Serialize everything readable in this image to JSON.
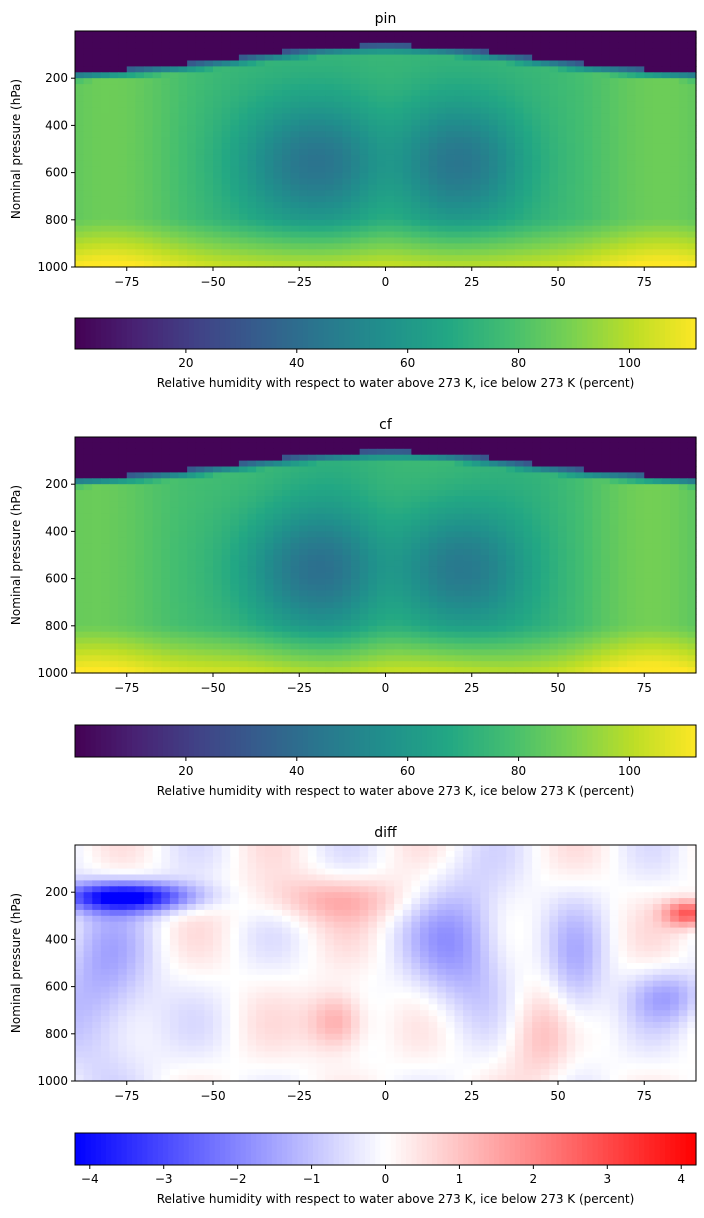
{
  "chart_data": [
    {
      "type": "heatmap",
      "title": "pin",
      "xlabel": "",
      "ylabel": "Nominal pressure (hPa)",
      "xlim": [
        -90,
        90
      ],
      "ylim": [
        1000,
        0
      ],
      "x_ticks": [
        -75,
        -50,
        -25,
        0,
        25,
        50,
        75
      ],
      "x_tick_labels": [
        "−75",
        "−50",
        "−25",
        "0",
        "25",
        "50",
        "75"
      ],
      "y_ticks": [
        200,
        400,
        600,
        800,
        1000
      ],
      "y_tick_labels": [
        "200",
        "400",
        "600",
        "800",
        "1000"
      ],
      "colormap": "viridis",
      "colorbar": {
        "label": "Relative humidity with respect to water above 273 K, ice below 273 K (percent)",
        "range": [
          0,
          112
        ],
        "ticks": [
          20,
          40,
          60,
          80,
          100
        ],
        "tick_labels": [
          "20",
          "40",
          "60",
          "80",
          "100"
        ]
      }
    },
    {
      "type": "heatmap",
      "title": "cf",
      "xlabel": "",
      "ylabel": "Nominal pressure (hPa)",
      "xlim": [
        -90,
        90
      ],
      "ylim": [
        1000,
        0
      ],
      "x_ticks": [
        -75,
        -50,
        -25,
        0,
        25,
        50,
        75
      ],
      "x_tick_labels": [
        "−75",
        "−50",
        "−25",
        "0",
        "25",
        "50",
        "75"
      ],
      "y_ticks": [
        200,
        400,
        600,
        800,
        1000
      ],
      "y_tick_labels": [
        "200",
        "400",
        "600",
        "800",
        "1000"
      ],
      "colormap": "viridis",
      "colorbar": {
        "label": "Relative humidity with respect to water above 273 K, ice below 273 K (percent)",
        "range": [
          0,
          112
        ],
        "ticks": [
          20,
          40,
          60,
          80,
          100
        ],
        "tick_labels": [
          "20",
          "40",
          "60",
          "80",
          "100"
        ]
      }
    },
    {
      "type": "heatmap",
      "title": "diff",
      "xlabel": "",
      "ylabel": "Nominal pressure (hPa)",
      "xlim": [
        -90,
        90
      ],
      "ylim": [
        1000,
        0
      ],
      "x_ticks": [
        -75,
        -50,
        -25,
        0,
        25,
        50,
        75
      ],
      "x_tick_labels": [
        "−75",
        "−50",
        "−25",
        "0",
        "25",
        "50",
        "75"
      ],
      "y_ticks": [
        200,
        400,
        600,
        800,
        1000
      ],
      "y_tick_labels": [
        "200",
        "400",
        "600",
        "800",
        "1000"
      ],
      "colormap": "bwr",
      "colorbar": {
        "label": "Relative humidity with respect to water above 273 K, ice below 273 K (percent)",
        "range": [
          -4.2,
          4.2
        ],
        "ticks": [
          -4,
          -3,
          -2,
          -1,
          0,
          1,
          2,
          3,
          4
        ],
        "tick_labels": [
          "−4",
          "−3",
          "−2",
          "−1",
          "0",
          "1",
          "2",
          "3",
          "4"
        ]
      }
    }
  ]
}
